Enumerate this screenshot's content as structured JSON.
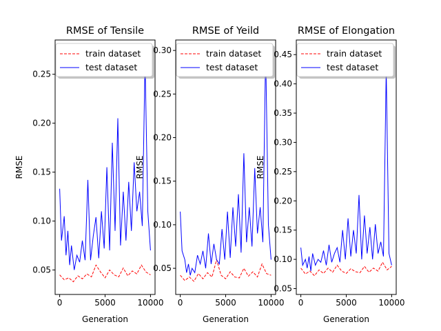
{
  "colors": {
    "train": "#ff0000",
    "test": "#0000ff"
  },
  "chart_data": [
    {
      "type": "line",
      "title": "RMSE of Tensile",
      "xlabel": "Generation",
      "ylabel": "RMSE",
      "xlim": [
        -500,
        10500
      ],
      "ylim": [
        0.025,
        0.285
      ],
      "xticks": [
        0,
        5000,
        10000
      ],
      "yticks": [
        0.05,
        0.1,
        0.15,
        0.2,
        0.25
      ],
      "ytick_labels": [
        "0.05",
        "0.10",
        "0.15",
        "0.20",
        "0.25"
      ],
      "legend": "upper-left",
      "series": [
        {
          "name": "train dataset",
          "style": "dashed",
          "color": "#ff0000",
          "x": [
            0,
            500,
            1000,
            1500,
            2000,
            2500,
            3000,
            3500,
            4000,
            4500,
            5000,
            5500,
            6000,
            6500,
            7000,
            7500,
            8000,
            8500,
            9000,
            9500,
            10000
          ],
          "y": [
            0.045,
            0.04,
            0.042,
            0.038,
            0.044,
            0.041,
            0.046,
            0.043,
            0.055,
            0.048,
            0.042,
            0.05,
            0.045,
            0.043,
            0.052,
            0.044,
            0.049,
            0.046,
            0.055,
            0.048,
            0.045
          ]
        },
        {
          "name": "test dataset",
          "style": "solid",
          "color": "#0000ff",
          "x": [
            0,
            200,
            500,
            700,
            900,
            1100,
            1300,
            1600,
            1900,
            2200,
            2500,
            2800,
            3100,
            3400,
            3700,
            4000,
            4300,
            4600,
            4900,
            5200,
            5500,
            5800,
            6100,
            6400,
            6700,
            7000,
            7300,
            7600,
            7900,
            8200,
            8500,
            8800,
            9100,
            9400,
            9700,
            10000
          ],
          "y": [
            0.133,
            0.08,
            0.105,
            0.065,
            0.09,
            0.055,
            0.075,
            0.05,
            0.065,
            0.058,
            0.08,
            0.06,
            0.142,
            0.06,
            0.085,
            0.104,
            0.062,
            0.11,
            0.072,
            0.155,
            0.07,
            0.18,
            0.09,
            0.205,
            0.075,
            0.13,
            0.08,
            0.14,
            0.09,
            0.16,
            0.11,
            0.13,
            0.095,
            0.265,
            0.11,
            0.07
          ]
        }
      ]
    },
    {
      "type": "line",
      "title": "RMSE of Yeild",
      "xlabel": "Generation",
      "ylabel": "RMSE",
      "xlim": [
        -500,
        10500
      ],
      "ylim": [
        0.02,
        0.312
      ],
      "xticks": [
        0,
        5000,
        10000
      ],
      "yticks": [
        0.05,
        0.1,
        0.15,
        0.2,
        0.25,
        0.3
      ],
      "ytick_labels": [
        "0.05",
        "0.10",
        "0.15",
        "0.20",
        "0.25",
        "0.30"
      ],
      "legend": "upper-left",
      "series": [
        {
          "name": "train dataset",
          "style": "dashed",
          "color": "#ff0000",
          "x": [
            0,
            500,
            1000,
            1500,
            2000,
            2500,
            3000,
            3500,
            4000,
            4500,
            5000,
            5500,
            6000,
            6500,
            7000,
            7500,
            8000,
            8500,
            9000,
            9500,
            10000
          ],
          "y": [
            0.042,
            0.036,
            0.04,
            0.035,
            0.044,
            0.038,
            0.045,
            0.04,
            0.06,
            0.042,
            0.038,
            0.046,
            0.04,
            0.039,
            0.05,
            0.041,
            0.046,
            0.04,
            0.055,
            0.044,
            0.042
          ]
        },
        {
          "name": "test dataset",
          "style": "solid",
          "color": "#0000ff",
          "x": [
            0,
            200,
            500,
            700,
            900,
            1100,
            1300,
            1600,
            1900,
            2200,
            2500,
            2800,
            3100,
            3400,
            3700,
            4000,
            4300,
            4600,
            4900,
            5200,
            5500,
            5800,
            6100,
            6400,
            6700,
            7000,
            7300,
            7600,
            7900,
            8200,
            8500,
            8800,
            9100,
            9400,
            9700,
            10000
          ],
          "y": [
            0.115,
            0.07,
            0.06,
            0.045,
            0.055,
            0.042,
            0.05,
            0.045,
            0.065,
            0.055,
            0.07,
            0.05,
            0.09,
            0.055,
            0.078,
            0.06,
            0.055,
            0.095,
            0.06,
            0.115,
            0.062,
            0.12,
            0.075,
            0.135,
            0.068,
            0.182,
            0.08,
            0.12,
            0.075,
            0.165,
            0.09,
            0.12,
            0.08,
            0.3,
            0.1,
            0.06
          ]
        }
      ]
    },
    {
      "type": "line",
      "title": "RMSE of Elongation",
      "xlabel": "Generation",
      "ylabel": "RMSE",
      "xlim": [
        -500,
        10500
      ],
      "ylim": [
        0.04,
        0.475
      ],
      "xticks": [
        0,
        5000,
        10000
      ],
      "yticks": [
        0.05,
        0.1,
        0.15,
        0.2,
        0.25,
        0.3,
        0.35,
        0.4,
        0.45
      ],
      "ytick_labels": [
        "0.05",
        "0.10",
        "0.15",
        "0.20",
        "0.25",
        "0.30",
        "0.35",
        "0.40",
        "0.45"
      ],
      "legend": "upper-left",
      "series": [
        {
          "name": "train dataset",
          "style": "dashed",
          "color": "#ff0000",
          "x": [
            0,
            500,
            1000,
            1500,
            2000,
            2500,
            3000,
            3500,
            4000,
            4500,
            5000,
            5500,
            6000,
            6500,
            7000,
            7500,
            8000,
            8500,
            9000,
            9500,
            10000
          ],
          "y": [
            0.085,
            0.075,
            0.08,
            0.072,
            0.082,
            0.076,
            0.085,
            0.078,
            0.09,
            0.08,
            0.076,
            0.084,
            0.079,
            0.077,
            0.088,
            0.078,
            0.085,
            0.08,
            0.095,
            0.082,
            0.088
          ]
        },
        {
          "name": "test dataset",
          "style": "solid",
          "color": "#0000ff",
          "x": [
            0,
            200,
            500,
            700,
            900,
            1100,
            1300,
            1600,
            1900,
            2200,
            2500,
            2800,
            3100,
            3400,
            3700,
            4000,
            4300,
            4600,
            4900,
            5200,
            5500,
            5800,
            6100,
            6400,
            6700,
            7000,
            7300,
            7600,
            7900,
            8200,
            8500,
            8800,
            9100,
            9400,
            9700,
            10000
          ],
          "y": [
            0.12,
            0.09,
            0.1,
            0.085,
            0.105,
            0.08,
            0.11,
            0.09,
            0.1,
            0.095,
            0.115,
            0.09,
            0.125,
            0.095,
            0.11,
            0.12,
            0.095,
            0.15,
            0.1,
            0.17,
            0.105,
            0.15,
            0.11,
            0.21,
            0.1,
            0.175,
            0.11,
            0.155,
            0.1,
            0.16,
            0.11,
            0.13,
            0.105,
            0.425,
            0.11,
            0.09
          ]
        }
      ]
    }
  ]
}
